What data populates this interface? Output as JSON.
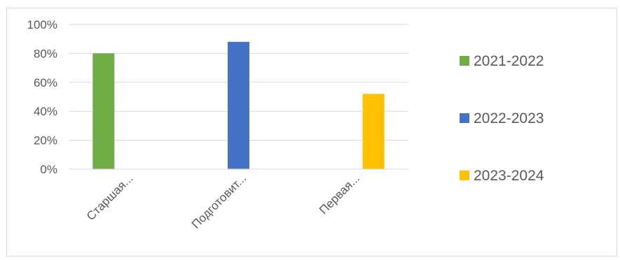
{
  "chart_data": {
    "type": "bar",
    "categories": [
      "Старшая...",
      "Подготовит...",
      "Первая..."
    ],
    "series": [
      {
        "name": "2021-2022",
        "color": "#70ad47",
        "values": [
          80,
          null,
          null
        ]
      },
      {
        "name": "2022-2023",
        "color": "#4472c4",
        "values": [
          null,
          88,
          null
        ]
      },
      {
        "name": "2023-2024",
        "color": "#ffc000",
        "values": [
          null,
          null,
          52
        ]
      }
    ],
    "ylim": [
      0,
      100
    ],
    "yticks": [
      "0%",
      "20%",
      "40%",
      "60%",
      "80%",
      "100%"
    ],
    "ytick_values": [
      0,
      20,
      40,
      60,
      80,
      100
    ],
    "grid": true,
    "legend_position": "right",
    "title": "",
    "xlabel": "",
    "ylabel": ""
  }
}
